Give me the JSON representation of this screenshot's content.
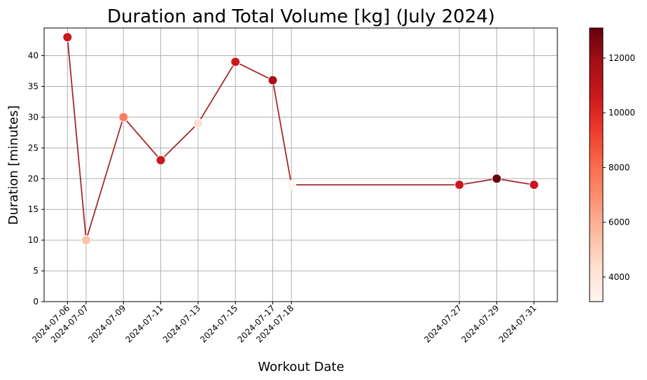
{
  "chart_data": {
    "type": "scatter",
    "title": "Duration and Total Volume [kg] (July 2024)",
    "xlabel": "Workout Date",
    "ylabel": "Duration [minutes]",
    "ylim": [
      0,
      44.5
    ],
    "yticks": [
      0,
      5,
      10,
      15,
      20,
      25,
      30,
      35,
      40
    ],
    "grid": true,
    "line_color": "#a52a2a",
    "colormap": "Reds",
    "colorbar": {
      "label": "",
      "range": [
        3100,
        13100
      ],
      "ticks": [
        "4000",
        "6000",
        "8000",
        "10000",
        "12000"
      ]
    },
    "series": [
      {
        "x": [
          "2024-07-06",
          "2024-07-07",
          "2024-07-09",
          "2024-07-11",
          "2024-07-13",
          "2024-07-15",
          "2024-07-17",
          "2024-07-18",
          "2024-07-27",
          "2024-07-29",
          "2024-07-31"
        ],
        "y": [
          43,
          10,
          30,
          23,
          29,
          39,
          36,
          19,
          19,
          20,
          19
        ],
        "color_values": [
          10600,
          5400,
          7500,
          10600,
          4400,
          10600,
          11700,
          3100,
          10600,
          13100,
          10600
        ]
      }
    ]
  }
}
